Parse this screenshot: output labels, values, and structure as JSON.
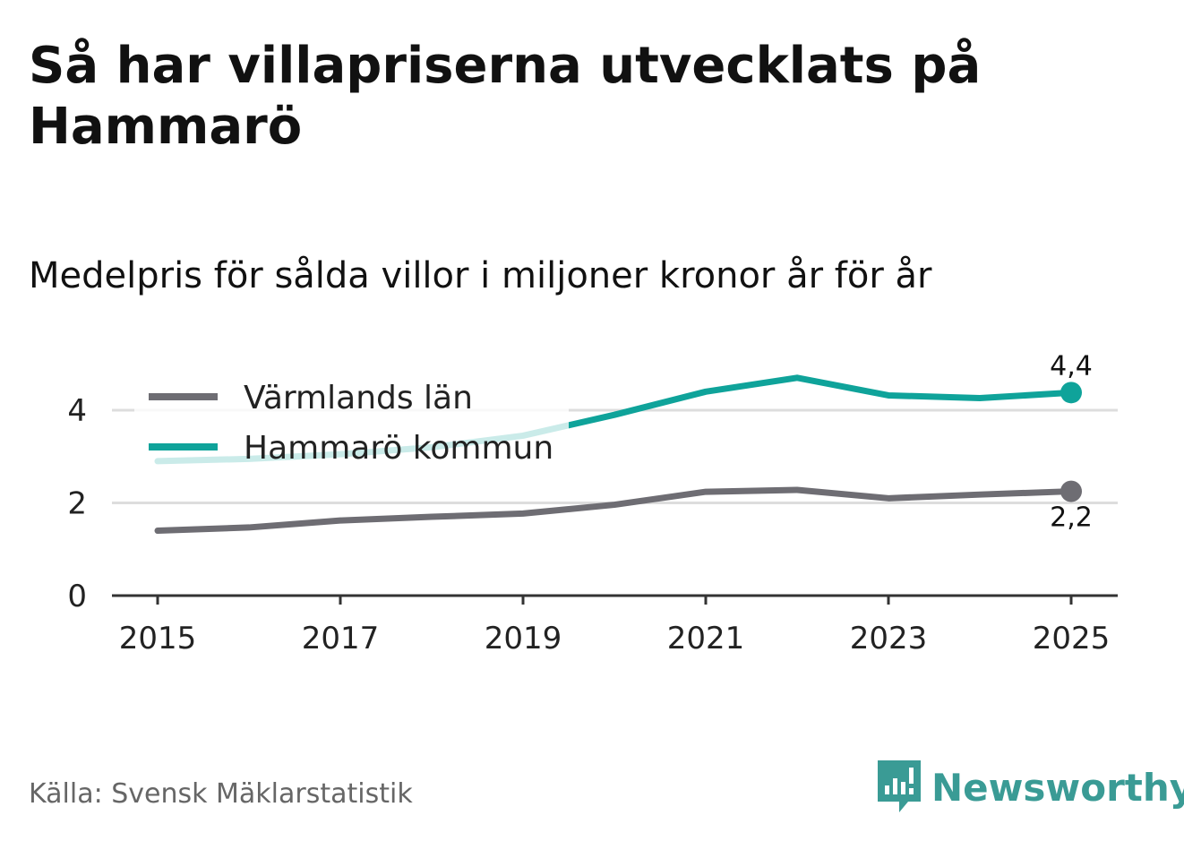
{
  "title": "Så har villapriserna utvecklats på Hammarö",
  "subtitle": "Medelpris för sålda villor i miljoner kronor år för år",
  "source": "Källa: Svensk Mäklarstatistik",
  "brand": {
    "name": "Newsworthy",
    "icon": "newsworthy-logo-icon",
    "color": "#3a9b95"
  },
  "chart_data": {
    "type": "line",
    "title": "Så har villapriserna utvecklats på Hammarö",
    "subtitle": "Medelpris för sålda villor i miljoner kronor år för år",
    "xlabel": "",
    "ylabel": "",
    "x": [
      2015,
      2016,
      2017,
      2018,
      2019,
      2020,
      2021,
      2022,
      2023,
      2024,
      2025
    ],
    "x_ticks": [
      "2015",
      "2017",
      "2019",
      "2021",
      "2023",
      "2025"
    ],
    "y_ticks": [
      "0",
      "2",
      "4"
    ],
    "ylim": [
      0,
      4.8
    ],
    "grid": true,
    "legend_position": "top-left",
    "series": [
      {
        "name": "Värmlands län",
        "color": "#6e6d73",
        "values": [
          1.4,
          1.47,
          1.62,
          1.7,
          1.77,
          1.96,
          2.24,
          2.28,
          2.1,
          2.18,
          2.25
        ],
        "end_label": "2,2"
      },
      {
        "name": "Hammarö kommun",
        "color": "#0fa39a",
        "values": [
          2.9,
          2.95,
          3.05,
          3.2,
          3.45,
          3.9,
          4.4,
          4.7,
          4.32,
          4.26,
          4.38
        ],
        "end_label": "4,4"
      }
    ]
  }
}
